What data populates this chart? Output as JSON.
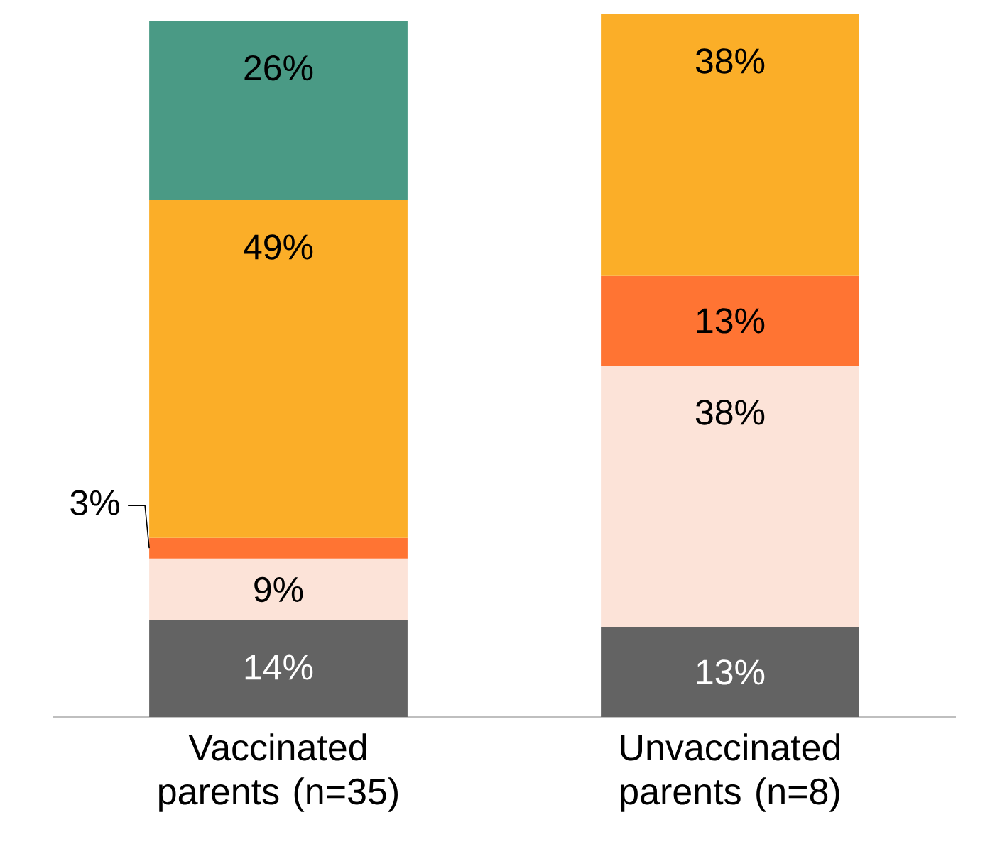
{
  "chart_data": {
    "type": "bar",
    "stacked": true,
    "categories": [
      "Vaccinated parents (n=35)",
      "Unvaccinated parents (n=8)"
    ],
    "series": [
      {
        "color": "#636363",
        "values": [
          14,
          13
        ],
        "value_labels": [
          "14%",
          "13%"
        ]
      },
      {
        "color": "#fce3d8",
        "values": [
          9,
          38
        ],
        "value_labels": [
          "9%",
          "38%"
        ]
      },
      {
        "color": "#ff7433",
        "values": [
          3,
          13
        ],
        "value_labels": [
          "3%",
          "13%"
        ]
      },
      {
        "color": "#fbae28",
        "values": [
          49,
          38
        ],
        "value_labels": [
          "49%",
          "38%"
        ]
      },
      {
        "color": "#4a9a85",
        "values": [
          26,
          null
        ],
        "value_labels": [
          "26%",
          null
        ]
      }
    ]
  }
}
